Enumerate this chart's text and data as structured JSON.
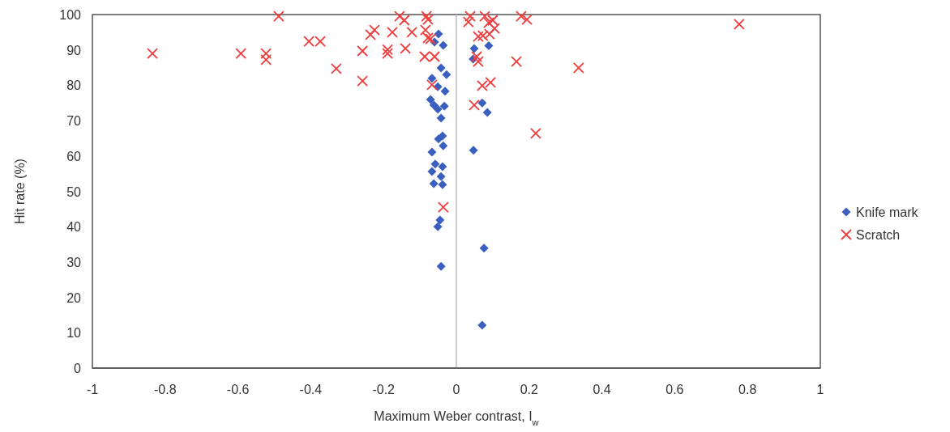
{
  "chart_data": {
    "type": "scatter",
    "xlabel": "Maximum Weber contrast, I$_{w}$",
    "ylabel": "Hit rate (%)",
    "xlim": [
      -1,
      1
    ],
    "ylim": [
      0,
      100
    ],
    "xticks": [
      -1,
      -0.8,
      -0.6,
      -0.4,
      -0.2,
      0,
      0.2,
      0.4,
      0.6,
      0.8,
      1
    ],
    "yticks": [
      0,
      10,
      20,
      30,
      40,
      50,
      60,
      70,
      80,
      90,
      100
    ],
    "ref_lines": [
      {
        "axis": "x",
        "value": 0,
        "color": "#bbbbbb"
      }
    ],
    "legend": "right",
    "series": [
      {
        "name": "Knife mark",
        "color": "#3a5fbf",
        "marker": "diamond",
        "x": [
          -0.049,
          -0.06,
          -0.036,
          -0.042,
          -0.027,
          -0.067,
          -0.051,
          -0.031,
          -0.071,
          -0.062,
          -0.033,
          -0.051,
          -0.042,
          -0.038,
          -0.049,
          -0.036,
          -0.067,
          -0.058,
          -0.038,
          -0.067,
          -0.042,
          -0.062,
          -0.038,
          -0.045,
          -0.051,
          -0.042,
          0.071,
          0.049,
          0.046,
          0.089,
          0.047,
          0.076,
          0.071,
          0.085
        ],
        "values": [
          94.5,
          92.2,
          91.3,
          84.9,
          83,
          82,
          79.6,
          78.3,
          76,
          74.4,
          74.1,
          73.2,
          70.7,
          65.7,
          64.8,
          62.9,
          61.1,
          57.7,
          57,
          55.6,
          54.2,
          52.2,
          51.9,
          41.9,
          40,
          28.8,
          12.1,
          90.4,
          87.4,
          91.2,
          61.6,
          33.9,
          75,
          72.3
        ]
      },
      {
        "name": "Scratch",
        "color": "#f03c3c",
        "marker": "cross",
        "x": [
          -0.835,
          -0.592,
          -0.523,
          -0.523,
          -0.488,
          -0.405,
          -0.374,
          -0.33,
          -0.258,
          -0.258,
          -0.225,
          -0.236,
          -0.176,
          -0.189,
          -0.189,
          -0.14,
          -0.156,
          -0.143,
          -0.122,
          -0.082,
          -0.078,
          -0.085,
          -0.078,
          -0.071,
          -0.087,
          -0.06,
          -0.067,
          -0.036,
          0.033,
          0.038,
          0.078,
          0.089,
          0.105,
          0.1,
          0.178,
          0.194,
          0.06,
          0.073,
          0.091,
          0.056,
          0.06,
          0.165,
          0.336,
          0.071,
          0.094,
          0.049,
          0.218,
          0.777
        ],
        "values": [
          89,
          89,
          89,
          87.2,
          99.5,
          92.4,
          92.4,
          84.7,
          89.7,
          81.2,
          95.6,
          94.3,
          95,
          90.1,
          89,
          90.4,
          99.5,
          98.4,
          95,
          99.5,
          98.6,
          95.6,
          93.4,
          93.1,
          88.1,
          88.1,
          80.1,
          45.5,
          97.9,
          99.5,
          99.5,
          97.7,
          96.1,
          98.4,
          99.5,
          98.6,
          93.8,
          94,
          94.5,
          88.1,
          86.7,
          86.7,
          84.9,
          79.9,
          80.8,
          74.4,
          66.4,
          97.3
        ]
      }
    ]
  }
}
